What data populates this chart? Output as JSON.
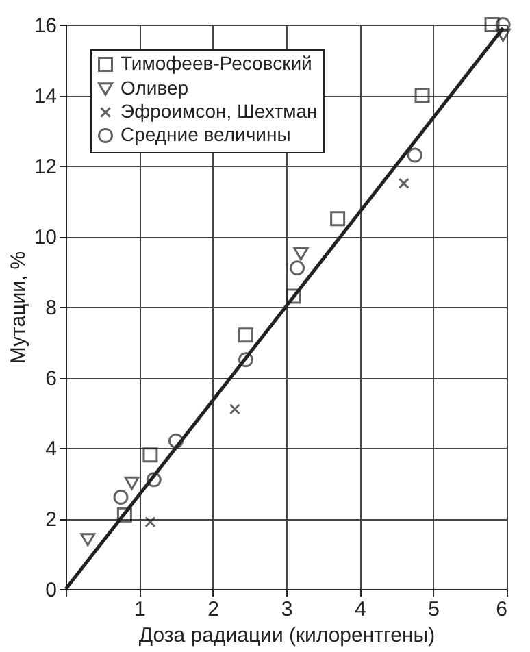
{
  "chart_data": {
    "type": "scatter",
    "xlabel": "Доза радиации (килорентгены)",
    "ylabel": "Мутации, %",
    "xlim": [
      0,
      6
    ],
    "ylim": [
      0,
      16
    ],
    "xticks": [
      {
        "value": 0,
        "label": null
      },
      1,
      2,
      3,
      4,
      5,
      6
    ],
    "yticks": [
      0,
      2,
      4,
      6,
      8,
      10,
      12,
      14,
      16
    ],
    "grid": true,
    "legend": "top left",
    "series": [
      {
        "name": "Тимофеев-Ресовский",
        "color": "#222222",
        "marker": "square",
        "x": [
          0.8,
          1.15,
          2.45,
          3.1,
          3.7,
          4.85,
          5.8
        ],
        "values": [
          2.1,
          3.8,
          7.2,
          8.3,
          10.5,
          14.0,
          16.0
        ]
      },
      {
        "name": "Оливер",
        "color": "#222222",
        "marker": "triangle",
        "x": [
          0.3,
          0.9,
          3.2,
          5.95
        ],
        "values": [
          1.4,
          3.0,
          9.5,
          15.7
        ]
      },
      {
        "name": "Эфроимсон, Шехтман",
        "color": "#222222",
        "marker": "cross",
        "x": [
          1.15,
          2.3,
          4.6
        ],
        "values": [
          1.9,
          5.1,
          11.5
        ]
      },
      {
        "name": "Средние величины",
        "color": "#222222",
        "marker": "circle",
        "x": [
          0.75,
          1.2,
          1.5,
          2.45,
          3.15,
          4.75,
          5.95
        ],
        "values": [
          2.6,
          3.1,
          4.2,
          6.5,
          9.1,
          12.3,
          16.0
        ]
      },
      {
        "type": "line",
        "color": "#222222",
        "marker": "none",
        "x": [
          0,
          5.95
        ],
        "values": [
          0,
          15.9
        ]
      }
    ]
  }
}
